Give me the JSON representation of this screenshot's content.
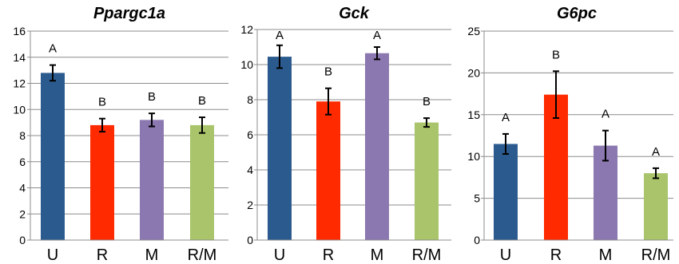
{
  "chart_data": [
    {
      "type": "bar",
      "title": "Ppargc1a",
      "categories": [
        "U",
        "R",
        "M",
        "R/M"
      ],
      "values": [
        12.8,
        8.8,
        9.2,
        8.8
      ],
      "errors": [
        0.6,
        0.5,
        0.5,
        0.6
      ],
      "labels": [
        "A",
        "B",
        "B",
        "B"
      ],
      "colors": [
        "#2b5b8e",
        "#ff2a00",
        "#8c78b0",
        "#a9c46a"
      ],
      "yticks": [
        0,
        2,
        4,
        6,
        8,
        10,
        12,
        14,
        16
      ],
      "ylim": [
        0,
        16
      ],
      "grid": true
    },
    {
      "type": "bar",
      "title": "Gck",
      "categories": [
        "U",
        "R",
        "M",
        "R/M"
      ],
      "values": [
        10.45,
        7.9,
        10.65,
        6.7
      ],
      "errors": [
        0.65,
        0.75,
        0.35,
        0.25
      ],
      "labels": [
        "A",
        "B",
        "A",
        "B"
      ],
      "colors": [
        "#2b5b8e",
        "#ff2a00",
        "#8c78b0",
        "#a9c46a"
      ],
      "yticks": [
        0,
        2,
        4,
        6,
        8,
        10,
        12
      ],
      "ylim": [
        0,
        12
      ],
      "grid": true
    },
    {
      "type": "bar",
      "title": "G6pc",
      "categories": [
        "U",
        "R",
        "M",
        "R/M"
      ],
      "values": [
        11.5,
        17.4,
        11.3,
        8.0
      ],
      "errors": [
        1.2,
        2.8,
        1.8,
        0.6
      ],
      "labels": [
        "A",
        "B",
        "A",
        "A"
      ],
      "colors": [
        "#2b5b8e",
        "#ff2a00",
        "#8c78b0",
        "#a9c46a"
      ],
      "yticks": [
        0,
        5,
        10,
        15,
        20,
        25
      ],
      "ylim": [
        0,
        25
      ],
      "grid": true
    }
  ]
}
